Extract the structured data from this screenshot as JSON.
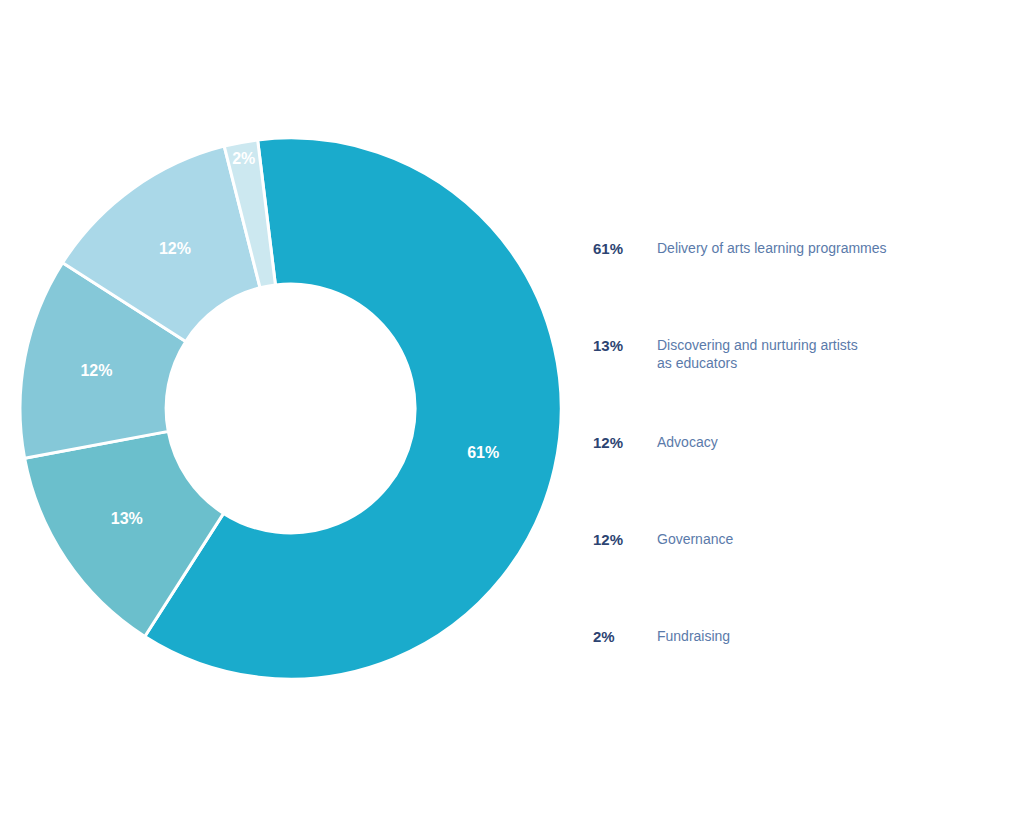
{
  "chart_data": {
    "type": "donut",
    "categories": [
      "Delivery of arts learning programmes",
      "Discovering and nurturing artists\nas educators",
      "Advocacy",
      "Governance",
      "Fundraising"
    ],
    "values": [
      61,
      13,
      12,
      12,
      2
    ],
    "value_labels": [
      "61%",
      "13%",
      "12%",
      "12%",
      "2%"
    ],
    "colors": [
      "#1aabcc",
      "#6bbfcc",
      "#85c8d8",
      "#aad8e8",
      "#cce8f0"
    ],
    "data_labels": true,
    "legend": "right"
  }
}
